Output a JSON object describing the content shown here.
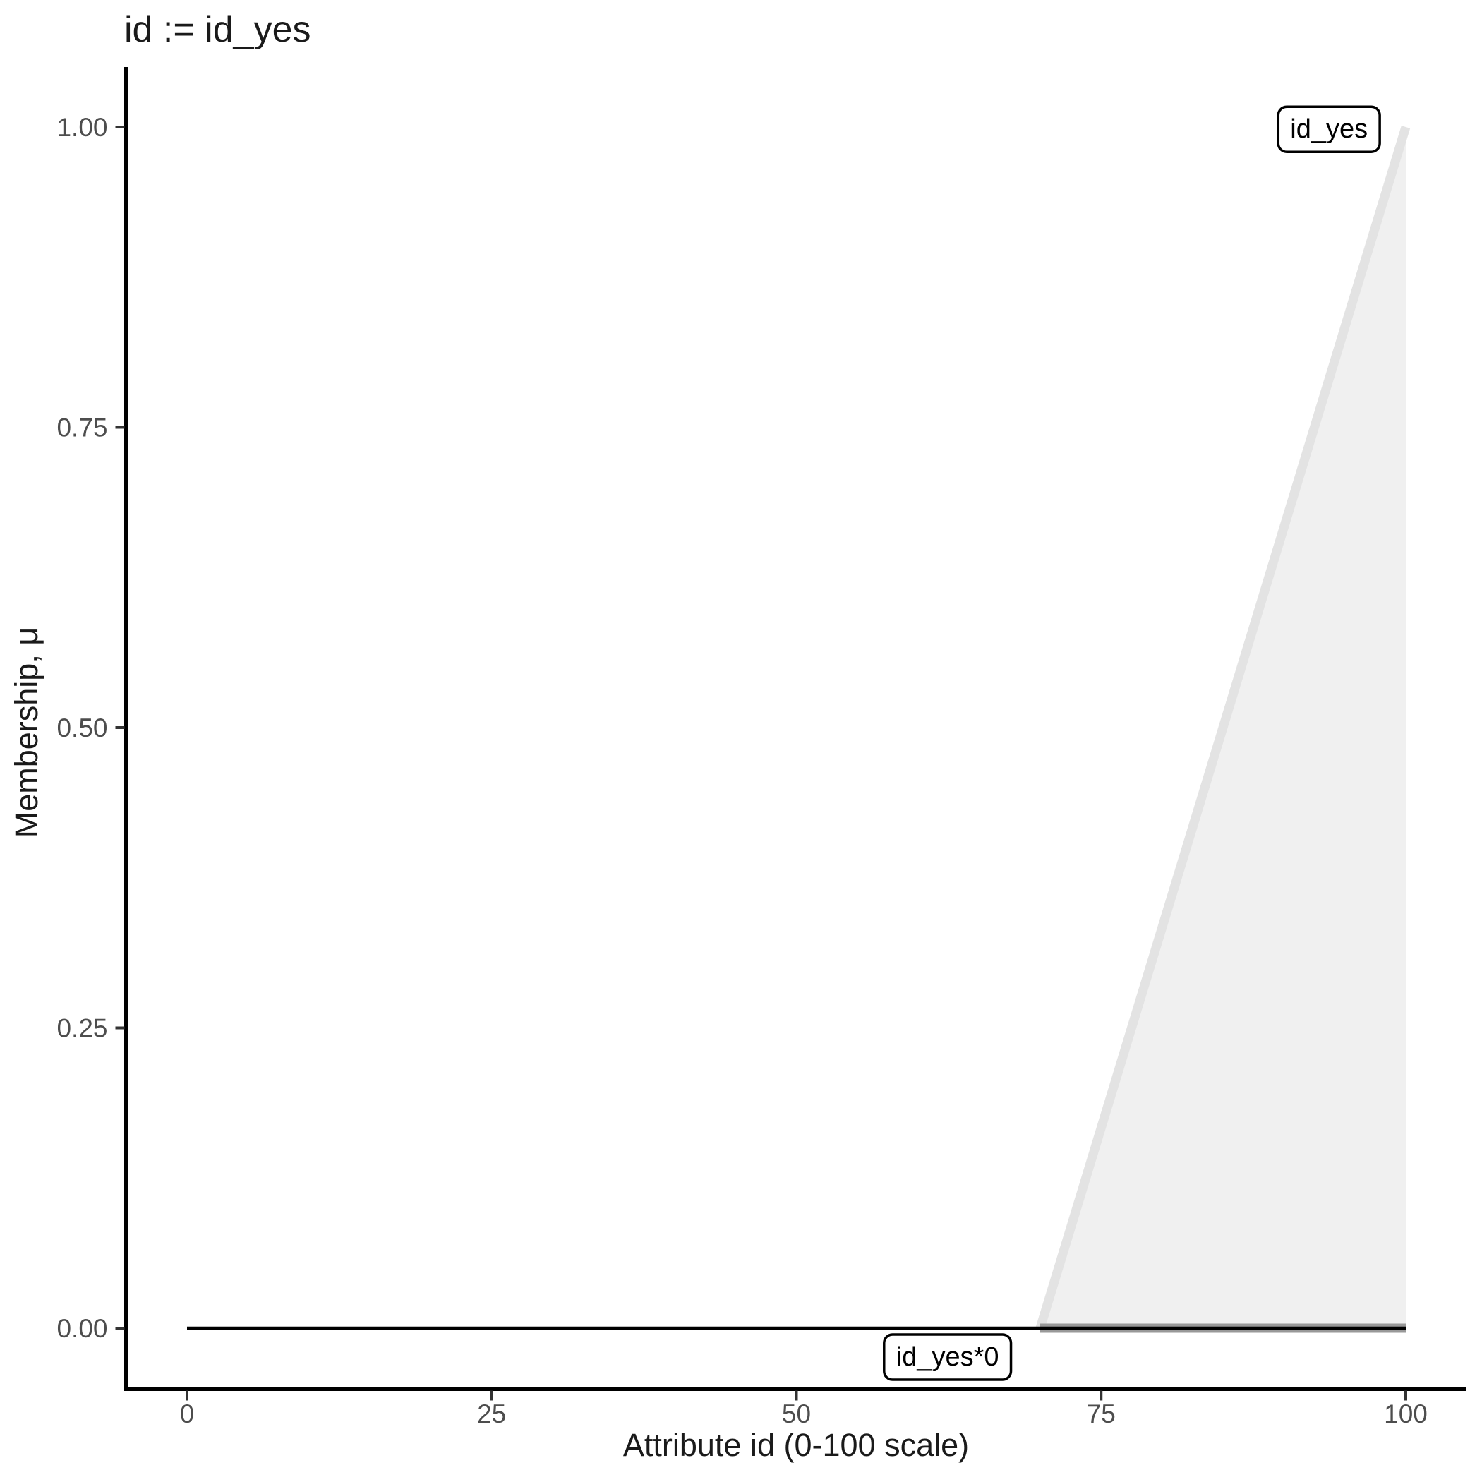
{
  "chart_data": {
    "type": "area",
    "title": "id := id_yes",
    "xlabel": "Attribute id (0-100 scale)",
    "ylabel": "Membership, μ",
    "xlim": [
      0,
      100
    ],
    "ylim": [
      0,
      1
    ],
    "grid": false,
    "legend_position": "none",
    "x_ticks": {
      "values": [
        0,
        25,
        50,
        75,
        100
      ],
      "labels": [
        "0",
        "25",
        "50",
        "75",
        "100"
      ]
    },
    "y_ticks": {
      "values": [
        0,
        0.25,
        0.5,
        0.75,
        1
      ],
      "labels": [
        "0.00",
        "0.25",
        "0.50",
        "0.75",
        "1.00"
      ]
    },
    "membership_function": {
      "name": "id_yes",
      "curve_points": [
        [
          70,
          0
        ],
        [
          100,
          1
        ]
      ],
      "support": [
        70,
        100
      ],
      "area_polygon": [
        [
          70,
          0
        ],
        [
          100,
          1
        ],
        [
          100,
          0
        ]
      ],
      "area_fill": "#f0f0f0",
      "curve_color": "#e3e3e3",
      "baseline_points": [
        [
          70,
          0
        ],
        [
          100,
          0
        ]
      ],
      "baseline_color": "#999999"
    },
    "modified_function": {
      "name": "id_yes*0",
      "points": [
        [
          0,
          0
        ],
        [
          100,
          0
        ]
      ],
      "color": "#000000"
    },
    "annotations": [
      {
        "label": "id_yes",
        "x": 93.7,
        "y": 0.999
      },
      {
        "label": "id_yes*0",
        "x": 62.4,
        "y": -0.0232
      }
    ],
    "colors": {
      "axis_line": "#000000",
      "tick_mark": "#333333",
      "tick_label": "#4d4d4d",
      "title_text": "#1a1a1a",
      "annotation_border": "#000000",
      "annotation_fill": "#ffffff"
    }
  }
}
